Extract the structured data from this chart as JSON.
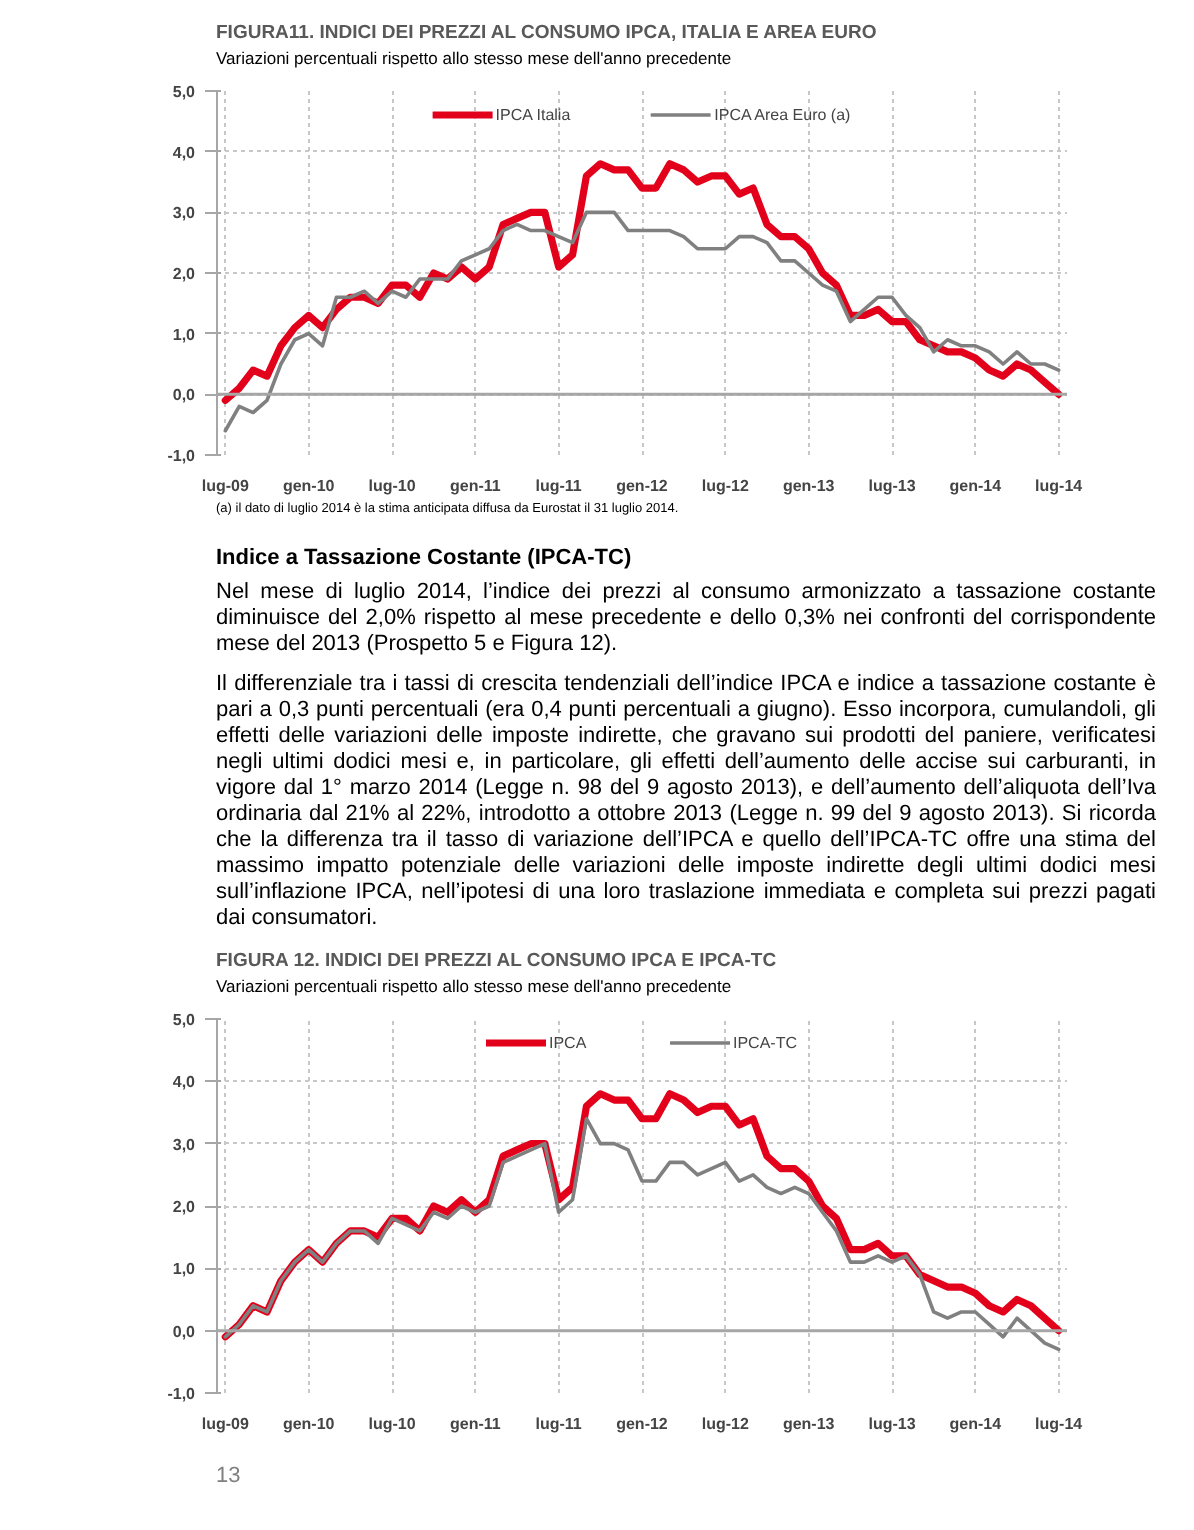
{
  "chart_data": [
    {
      "type": "line",
      "title": "FIGURA11. INDICI DEI PREZZI AL CONSUMO IPCA, ITALIA E AREA EURO",
      "subtitle": "Variazioni percentuali rispetto allo stesso mese dell'anno precedente",
      "categories": [
        "lug-09",
        null,
        null,
        null,
        null,
        null,
        "gen-10",
        null,
        null,
        null,
        null,
        null,
        "lug-10",
        null,
        null,
        null,
        null,
        null,
        "gen-11",
        null,
        null,
        null,
        null,
        null,
        "lug-11",
        null,
        null,
        null,
        null,
        null,
        "gen-12",
        null,
        null,
        null,
        null,
        null,
        "lug-12",
        null,
        null,
        null,
        null,
        null,
        "gen-13",
        null,
        null,
        null,
        null,
        null,
        "lug-13",
        null,
        null,
        null,
        null,
        null,
        "gen-14",
        null,
        null,
        null,
        null,
        null,
        "lug-14"
      ],
      "series": [
        {
          "name": "IPCA Italia",
          "color": "#e3001b",
          "values": [
            -0.1,
            0.1,
            0.4,
            0.3,
            0.8,
            1.1,
            1.3,
            1.1,
            1.4,
            1.6,
            1.6,
            1.5,
            1.8,
            1.8,
            1.6,
            2.0,
            1.9,
            2.1,
            1.9,
            2.1,
            2.8,
            2.9,
            3.0,
            3.0,
            2.1,
            2.3,
            3.6,
            3.8,
            3.7,
            3.7,
            3.4,
            3.4,
            3.8,
            3.7,
            3.5,
            3.6,
            3.6,
            3.3,
            3.4,
            2.8,
            2.6,
            2.6,
            2.4,
            2.0,
            1.8,
            1.3,
            1.3,
            1.4,
            1.2,
            1.2,
            0.9,
            0.8,
            0.7,
            0.7,
            0.6,
            0.4,
            0.3,
            0.5,
            0.4,
            0.2,
            0.0
          ]
        },
        {
          "name": "IPCA Area Euro (a)",
          "color": "#808080",
          "values": [
            -0.6,
            -0.2,
            -0.3,
            -0.1,
            0.5,
            0.9,
            1.0,
            0.8,
            1.6,
            1.6,
            1.7,
            1.5,
            1.7,
            1.6,
            1.9,
            1.9,
            1.9,
            2.2,
            2.3,
            2.4,
            2.7,
            2.8,
            2.7,
            2.7,
            2.6,
            2.5,
            3.0,
            3.0,
            3.0,
            2.7,
            2.7,
            2.7,
            2.7,
            2.6,
            2.4,
            2.4,
            2.4,
            2.6,
            2.6,
            2.5,
            2.2,
            2.2,
            2.0,
            1.8,
            1.7,
            1.2,
            1.4,
            1.6,
            1.6,
            1.3,
            1.1,
            0.7,
            0.9,
            0.8,
            0.8,
            0.7,
            0.5,
            0.7,
            0.5,
            0.5,
            0.4
          ]
        }
      ],
      "ylim": [
        -1,
        5
      ],
      "yticks": [
        {
          "value": -1,
          "label": "-1,0"
        },
        {
          "value": 0,
          "label": "0,0"
        },
        {
          "value": 1,
          "label": "1,0"
        },
        {
          "value": 2,
          "label": "2,0"
        },
        {
          "value": 3,
          "label": "3,0"
        },
        {
          "value": 4,
          "label": "4,0"
        },
        {
          "value": 5,
          "label": "5,0"
        }
      ],
      "ref_lines": [
        {
          "axis": "y",
          "value": 0,
          "color": "#a6a6a6"
        }
      ],
      "grid": true,
      "legend": "top",
      "line_style": "solid",
      "annotations": [
        "(a) il dato di luglio 2014 è la stima anticipata diffusa da Eurostat il 31 luglio 2014.",
        "Indice a Tassazione Costante (IPCA-TC)",
        "Nel mese di luglio 2014, l’indice dei prezzi al consumo armonizzato a tassazione costante diminuisce del 2,0% rispetto al mese precedente e dello 0,3% nei confronti del corrispondente mese del 2013 (Prospetto 5 e Figura 12).",
        "Il differenziale tra i tassi di crescita tendenziali dell’indice IPCA e indice a tassazione costante è pari a 0,3 punti percentuali (era 0,4 punti percentuali  a giugno). Esso incorpora, cumulandoli, gli effetti delle variazioni delle imposte indirette, che gravano sui prodotti del paniere, verificatesi negli ultimi dodici mesi e, in particolare, gli effetti dell’aumento delle accise sui carburanti, in vigore dal 1° marzo 2014 (Legge n. 98 del 9 agosto 2013), e dell’aumento dell’aliquota dell’Iva ordinaria dal 21% al 22%, introdotto a ottobre 2013 (Legge n. 99 del 9 agosto 2013). Si ricorda che la differenza tra il tasso di variazione dell’IPCA e quello dell’IPCA-TC offre una stima del massimo impatto potenziale delle variazioni delle imposte indirette degli ultimi dodici mesi sull’inflazione IPCA, nell’ipotesi di una loro traslazione immediata e completa sui prezzi pagati dai consumatori."
      ]
    },
    {
      "type": "line",
      "title": "FIGURA 12. INDICI DEI PREZZI AL CONSUMO IPCA E IPCA-TC",
      "subtitle": "Variazioni percentuali rispetto allo stesso mese dell'anno precedente",
      "categories": [
        "lug-09",
        null,
        null,
        null,
        null,
        null,
        "gen-10",
        null,
        null,
        null,
        null,
        null,
        "lug-10",
        null,
        null,
        null,
        null,
        null,
        "gen-11",
        null,
        null,
        null,
        null,
        null,
        "lug-11",
        null,
        null,
        null,
        null,
        null,
        "gen-12",
        null,
        null,
        null,
        null,
        null,
        "lug-12",
        null,
        null,
        null,
        null,
        null,
        "gen-13",
        null,
        null,
        null,
        null,
        null,
        "lug-13",
        null,
        null,
        null,
        null,
        null,
        "gen-14",
        null,
        null,
        null,
        null,
        null,
        "lug-14"
      ],
      "series": [
        {
          "name": "IPCA",
          "color": "#e3001b",
          "values": [
            -0.1,
            0.1,
            0.4,
            0.3,
            0.8,
            1.1,
            1.3,
            1.1,
            1.4,
            1.6,
            1.6,
            1.5,
            1.8,
            1.8,
            1.6,
            2.0,
            1.9,
            2.1,
            1.9,
            2.1,
            2.8,
            2.9,
            3.0,
            3.0,
            2.1,
            2.3,
            3.6,
            3.8,
            3.7,
            3.7,
            3.4,
            3.4,
            3.8,
            3.7,
            3.5,
            3.6,
            3.6,
            3.3,
            3.4,
            2.8,
            2.6,
            2.6,
            2.4,
            2.0,
            1.8,
            1.3,
            1.3,
            1.4,
            1.2,
            1.2,
            0.9,
            0.8,
            0.7,
            0.7,
            0.6,
            0.4,
            0.3,
            0.5,
            0.4,
            0.2,
            0.0
          ]
        },
        {
          "name": "IPCA-TC",
          "color": "#808080",
          "values": [
            -0.1,
            0.1,
            0.4,
            0.3,
            0.8,
            1.1,
            1.3,
            1.1,
            1.4,
            1.6,
            1.6,
            1.4,
            1.8,
            1.7,
            1.6,
            1.9,
            1.8,
            2.0,
            1.9,
            2.0,
            2.7,
            2.8,
            2.9,
            3.0,
            1.9,
            2.1,
            3.4,
            3.0,
            3.0,
            2.9,
            2.4,
            2.4,
            2.7,
            2.7,
            2.5,
            2.6,
            2.7,
            2.4,
            2.5,
            2.3,
            2.2,
            2.3,
            2.2,
            1.9,
            1.6,
            1.1,
            1.1,
            1.2,
            1.1,
            1.2,
            0.9,
            0.3,
            0.2,
            0.3,
            0.3,
            0.1,
            -0.1,
            0.2,
            0.0,
            -0.2,
            -0.3
          ]
        }
      ],
      "ylim": [
        -1,
        5
      ],
      "yticks": [
        {
          "value": -1,
          "label": "-1,0"
        },
        {
          "value": 0,
          "label": "0,0"
        },
        {
          "value": 1,
          "label": "1,0"
        },
        {
          "value": 2,
          "label": "2,0"
        },
        {
          "value": 3,
          "label": "3,0"
        },
        {
          "value": 4,
          "label": "4,0"
        },
        {
          "value": 5,
          "label": "5,0"
        }
      ],
      "ref_lines": [
        {
          "axis": "y",
          "value": 0,
          "color": "#a6a6a6"
        }
      ],
      "grid": true,
      "legend": "top",
      "line_style": "solid",
      "annotations": [
        "13"
      ]
    }
  ]
}
